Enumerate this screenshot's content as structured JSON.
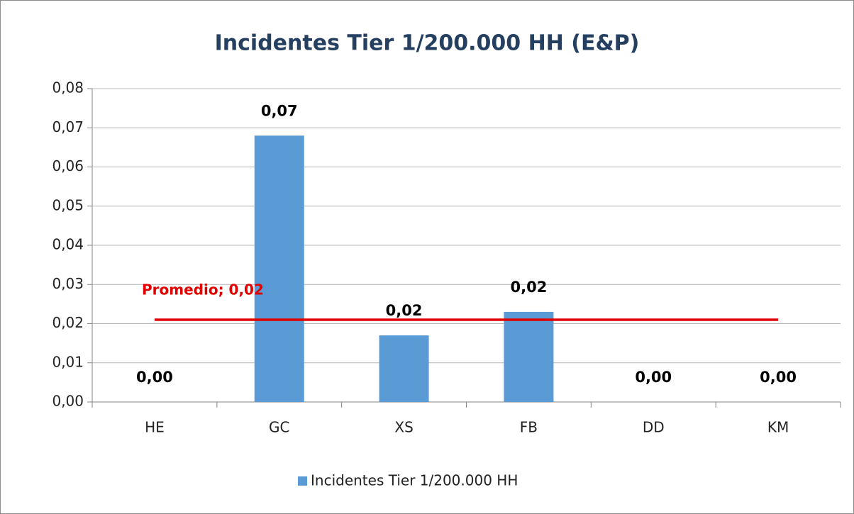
{
  "chart_data": {
    "type": "bar",
    "title": "Incidentes Tier 1/200.000 HH (E&P)",
    "categories": [
      "HE",
      "GC",
      "XS",
      "FB",
      "DD",
      "KM"
    ],
    "series": [
      {
        "name": "Incidentes Tier 1/200.000 HH",
        "color": "#5b9bd5",
        "values": [
          0,
          0.068,
          0.017,
          0.023,
          0,
          0
        ],
        "value_labels": [
          "0,00",
          "0,07",
          "0,02",
          "0,02",
          "0,00",
          "0,00"
        ]
      }
    ],
    "average": {
      "label": "Promedio; 0,02",
      "value": 0.021,
      "color": "#e00000"
    },
    "ylim": [
      0,
      0.08
    ],
    "yticks": [
      {
        "value": 0,
        "label": "0,00"
      },
      {
        "value": 0.01,
        "label": "0,01"
      },
      {
        "value": 0.02,
        "label": "0,02"
      },
      {
        "value": 0.03,
        "label": "0,03"
      },
      {
        "value": 0.04,
        "label": "0,04"
      },
      {
        "value": 0.05,
        "label": "0,05"
      },
      {
        "value": 0.06,
        "label": "0,06"
      },
      {
        "value": 0.07,
        "label": "0,07"
      },
      {
        "value": 0.08,
        "label": "0,08"
      }
    ],
    "grid": true,
    "legend": "bottom"
  }
}
